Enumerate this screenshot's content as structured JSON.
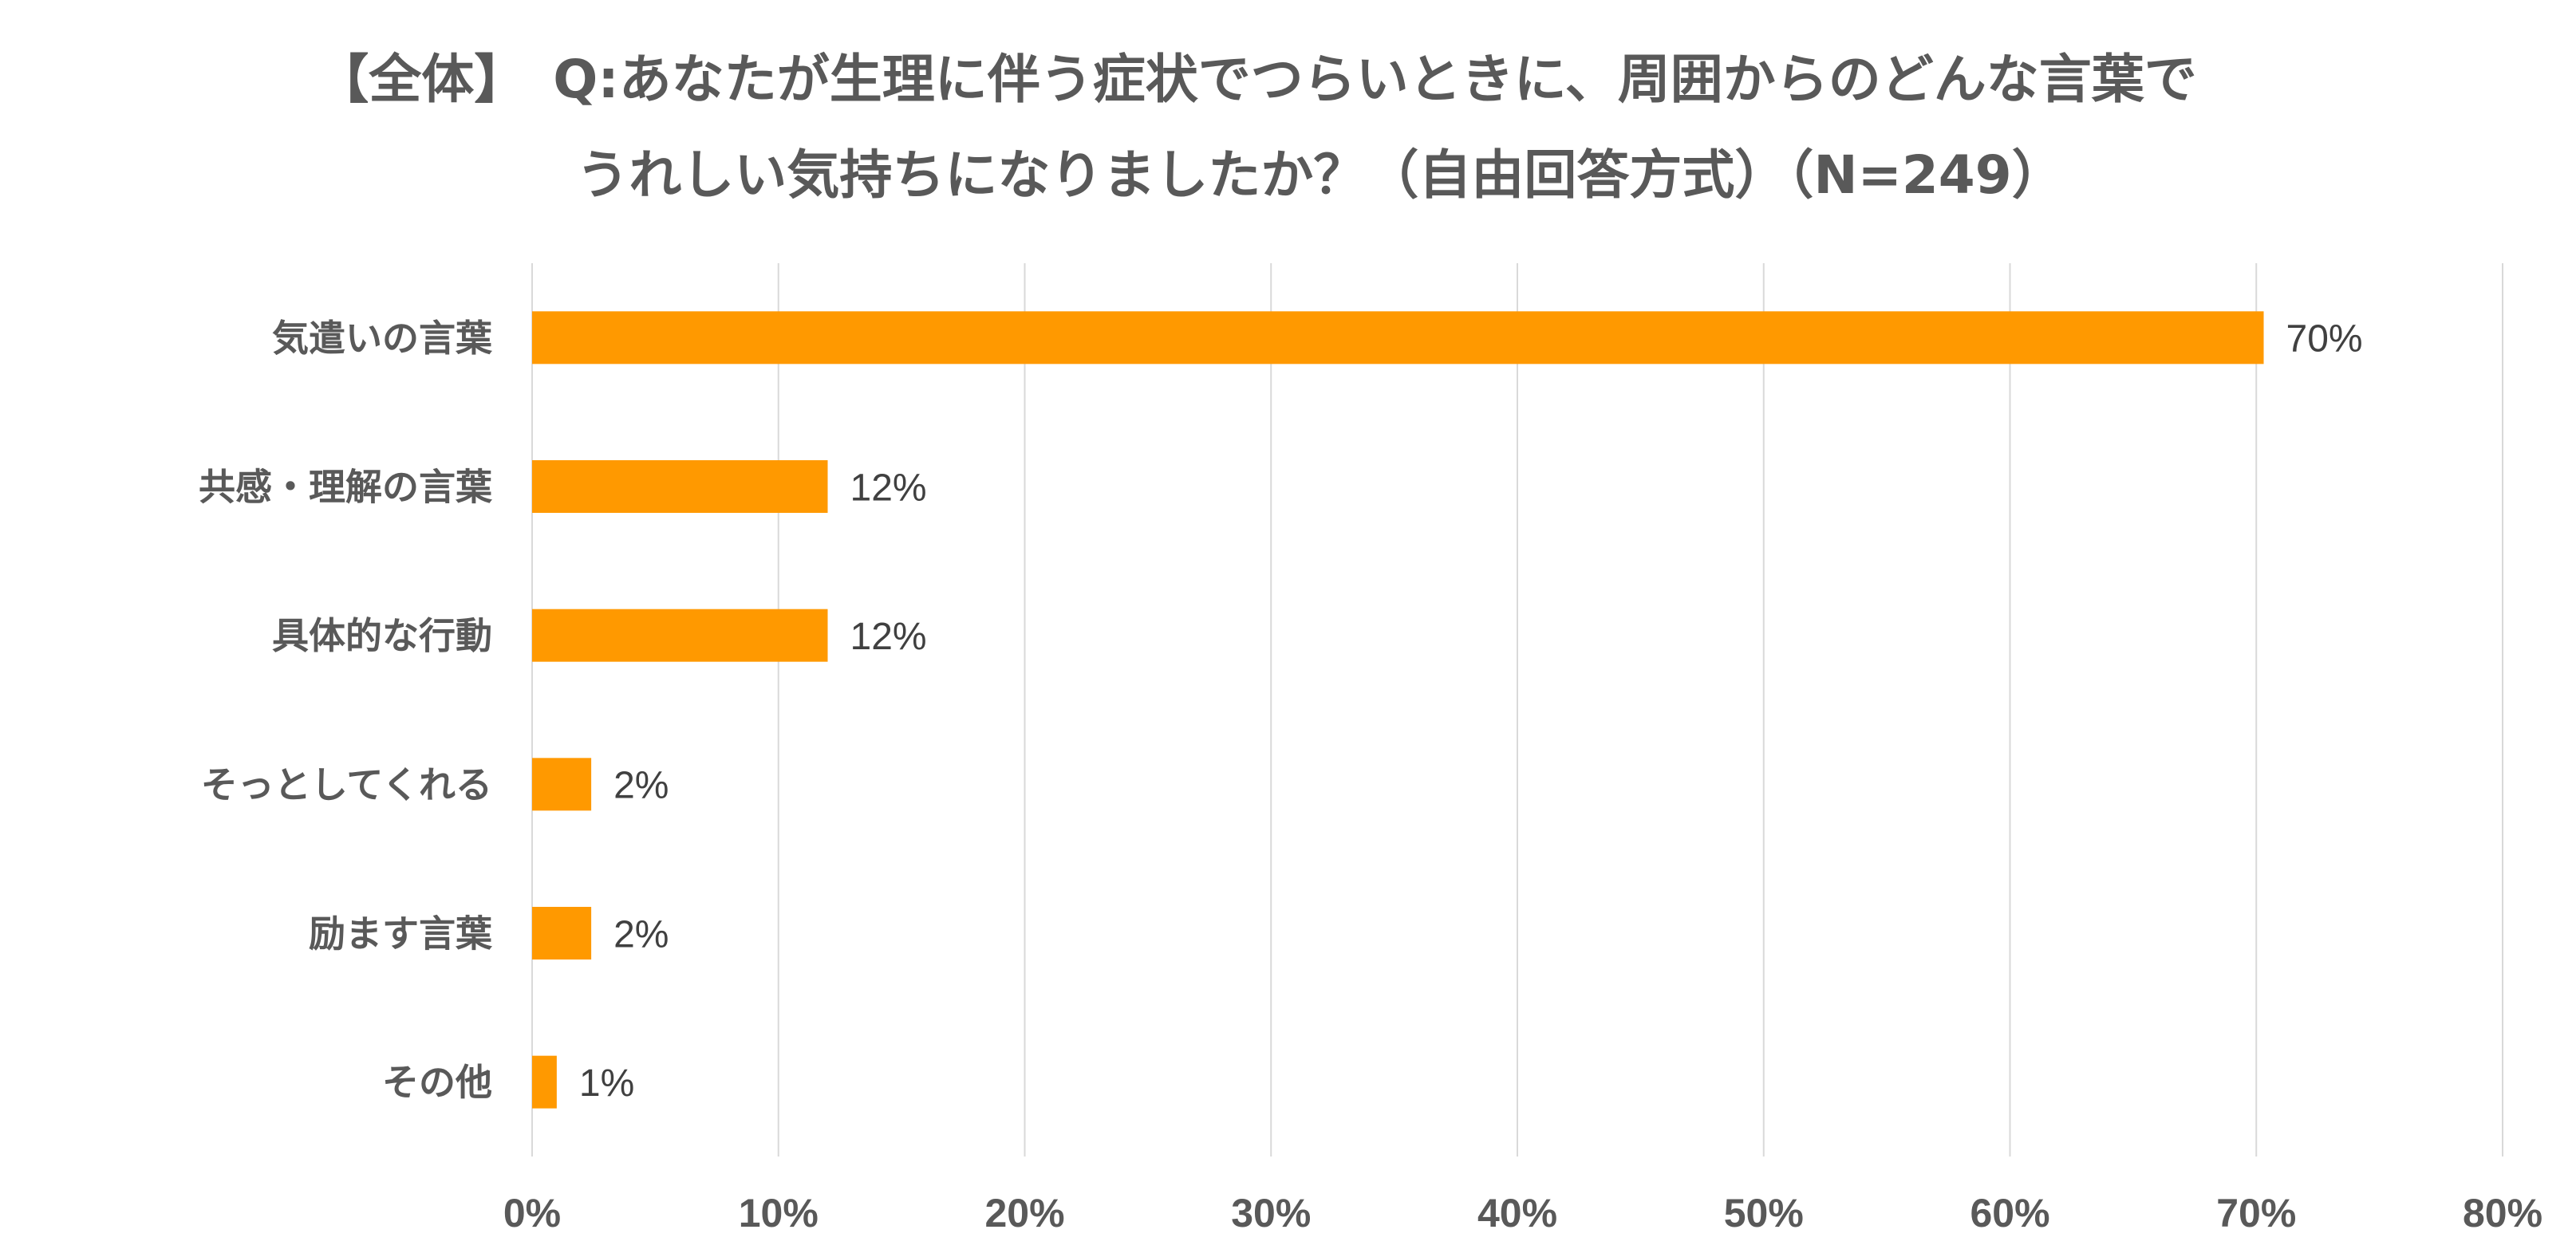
{
  "chart_data": {
    "type": "bar",
    "orientation": "horizontal",
    "title_lines": [
      "【全体】　Q:あなたが生理に伴う症状でつらいときに、周囲からのどんな言葉で",
      "うれしい気持ちになりましたか？（自由回答方式）（N=249）"
    ],
    "categories": [
      "気遣いの言葉",
      "共感・理解の言葉",
      "具体的な行動",
      "そっとしてくれる",
      "励ます言葉",
      "その他"
    ],
    "values": [
      70.3,
      12.0,
      12.0,
      2.4,
      2.4,
      1.0
    ],
    "value_labels": [
      "70%",
      "12%",
      "12%",
      "2%",
      "2%",
      "1%"
    ],
    "xlim": [
      0,
      80
    ],
    "x_ticks": [
      0,
      10,
      20,
      30,
      40,
      50,
      60,
      70,
      80
    ],
    "x_tick_labels": [
      "0%",
      "10%",
      "20%",
      "30%",
      "40%",
      "50%",
      "60%",
      "70%",
      "80%"
    ],
    "xlabel": "",
    "ylabel": "",
    "grid": "vertical",
    "legend": "none",
    "colors": {
      "bar": "#ff9900",
      "gridline": "#d9d9d9",
      "text": "#595959",
      "value_text": "#404040"
    }
  }
}
